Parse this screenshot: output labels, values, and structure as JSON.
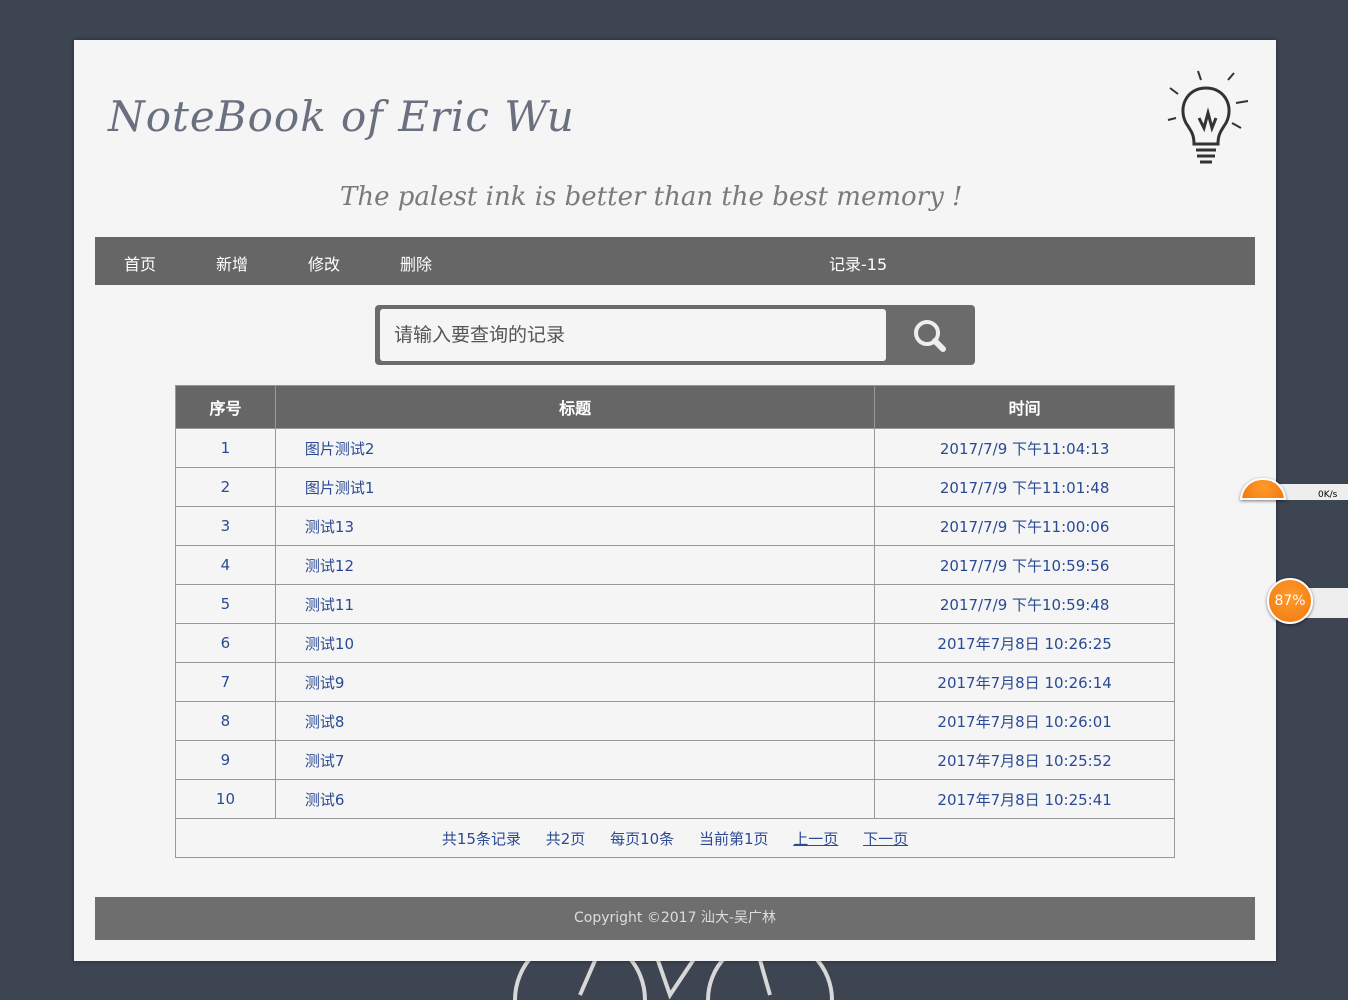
{
  "header": {
    "title": "NoteBook of Eric Wu",
    "motto": "The palest ink is better than the best memory !"
  },
  "nav": {
    "items": [
      "首页",
      "新增",
      "修改",
      "删除"
    ],
    "record_count": "记录-15"
  },
  "search": {
    "placeholder": "请输入要查询的记录",
    "value": ""
  },
  "table": {
    "headers": [
      "序号",
      "标题",
      "时间"
    ],
    "rows": [
      [
        "1",
        "图片测试2",
        "2017/7/9 下午11:04:13"
      ],
      [
        "2",
        "图片测试1",
        "2017/7/9 下午11:01:48"
      ],
      [
        "3",
        "测试13",
        "2017/7/9 下午11:00:06"
      ],
      [
        "4",
        "测试12",
        "2017/7/9 下午10:59:56"
      ],
      [
        "5",
        "测试11",
        "2017/7/9 下午10:59:48"
      ],
      [
        "6",
        "测试10",
        "2017年7月8日 10:26:25"
      ],
      [
        "7",
        "测试9",
        "2017年7月8日 10:26:14"
      ],
      [
        "8",
        "测试8",
        "2017年7月8日 10:26:01"
      ],
      [
        "9",
        "测试7",
        "2017年7月8日 10:25:52"
      ],
      [
        "10",
        "测试6",
        "2017年7月8日 10:25:41"
      ]
    ]
  },
  "pager": {
    "total": "共15条记录",
    "pages": "共2页",
    "per_page": "每页10条",
    "current": "当前第1页",
    "prev": "上一页",
    "next": "下一页"
  },
  "footer": {
    "copyright": "Copyright ©2017 汕大-吴广林"
  },
  "widgets": {
    "speed": "0K/s",
    "percent": "87%"
  },
  "colors": {
    "background": "#3d4452",
    "nav": "#666666",
    "link": "#2a4a94",
    "widget": "#f5841f"
  }
}
